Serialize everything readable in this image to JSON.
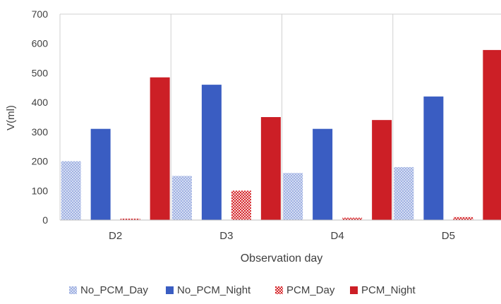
{
  "chart_data": {
    "type": "bar",
    "categories": [
      "D2",
      "D3",
      "D4",
      "D5"
    ],
    "series": [
      {
        "name": "No_PCM_Day",
        "values": [
          200,
          150,
          160,
          180
        ],
        "color": "#b4c2e8",
        "pattern": "dots"
      },
      {
        "name": "No_PCM_Night",
        "values": [
          310,
          460,
          310,
          420
        ],
        "color": "#3a5dc2",
        "pattern": "solid"
      },
      {
        "name": "PCM_Day",
        "values": [
          5,
          100,
          8,
          10
        ],
        "color": "#d6262b",
        "pattern": "dots"
      },
      {
        "name": "PCM_Night",
        "values": [
          485,
          350,
          340,
          578
        ],
        "color": "#cc1f26",
        "pattern": "solid"
      }
    ],
    "xlabel": "Observation day",
    "ylabel": "V(ml)",
    "ylim": [
      0,
      700
    ],
    "yticks": [
      0,
      100,
      200,
      300,
      400,
      500,
      600,
      700
    ],
    "grid": "vertical category separators",
    "legend": "bottom"
  }
}
